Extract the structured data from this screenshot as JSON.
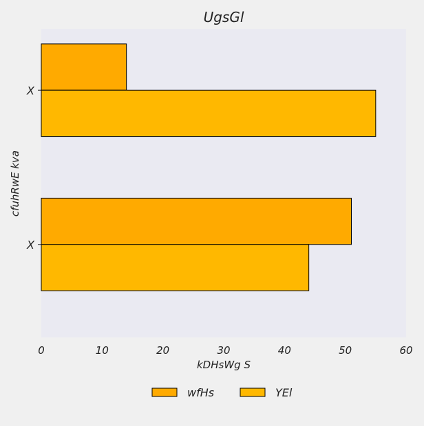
{
  "chart_data": {
    "type": "bar",
    "orientation": "horizontal",
    "title": "UgsGl",
    "xlabel": "kDHsWg  S",
    "ylabel": "cfuhRwE kva",
    "categories": [
      "X",
      "X"
    ],
    "series": [
      {
        "name": "wfHs",
        "values": [
          14,
          51
        ],
        "color": "#ffaa00"
      },
      {
        "name": "YEl",
        "values": [
          55,
          44
        ],
        "color": "#ffb800"
      }
    ],
    "xlim": [
      0,
      60
    ],
    "xticks": [
      0,
      10,
      20,
      30,
      40,
      50,
      60
    ],
    "grid": false,
    "legend_position": "bottom-center",
    "plot_background": "#eaeaf2"
  }
}
